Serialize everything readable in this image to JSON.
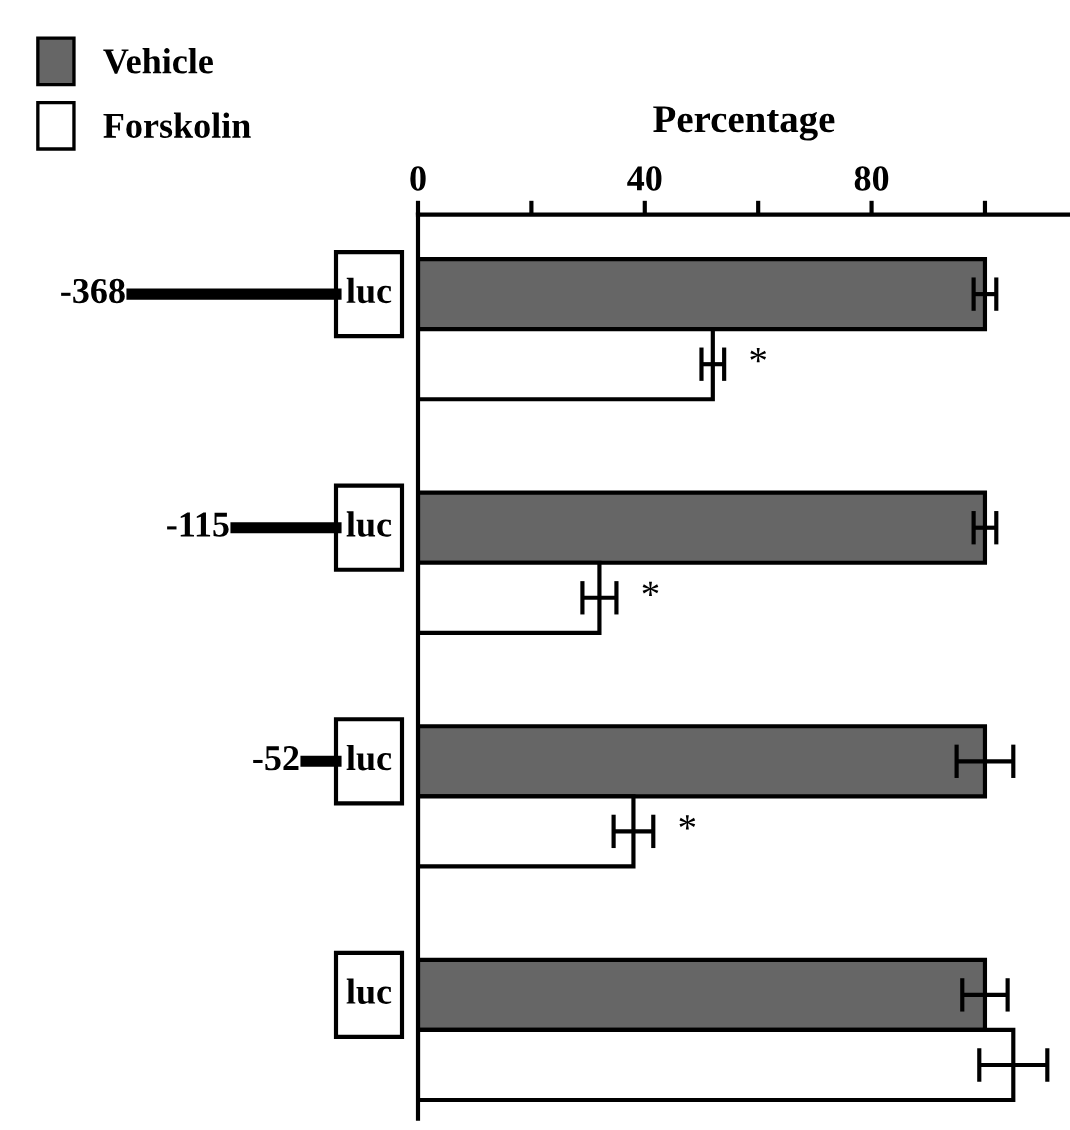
{
  "chart_data": {
    "type": "bar",
    "orientation": "horizontal",
    "xlabel": "Percentage",
    "categories": [
      null,
      null,
      null,
      null
    ],
    "series": [
      {
        "name": "Vehicle",
        "color": "#666666",
        "values": [
          100,
          100,
          100,
          100
        ],
        "errors": [
          2,
          2,
          5,
          4
        ]
      },
      {
        "name": "Forskolin",
        "color": "#ffffff",
        "values": [
          52,
          32,
          38,
          105
        ],
        "errors": [
          2,
          3,
          3.5,
          6
        ]
      }
    ],
    "xlim": [
      0,
      115
    ],
    "xticks": [
      0,
      {
        "value": 20,
        "label": null
      },
      40,
      {
        "value": 60,
        "label": null
      },
      80,
      {
        "value": 100,
        "label": null
      }
    ],
    "annotations": [
      "-368",
      "luc",
      "*",
      "-115",
      "luc",
      "*",
      "-52",
      "luc",
      "*",
      "luc"
    ],
    "legend": "top left",
    "grid": false
  }
}
